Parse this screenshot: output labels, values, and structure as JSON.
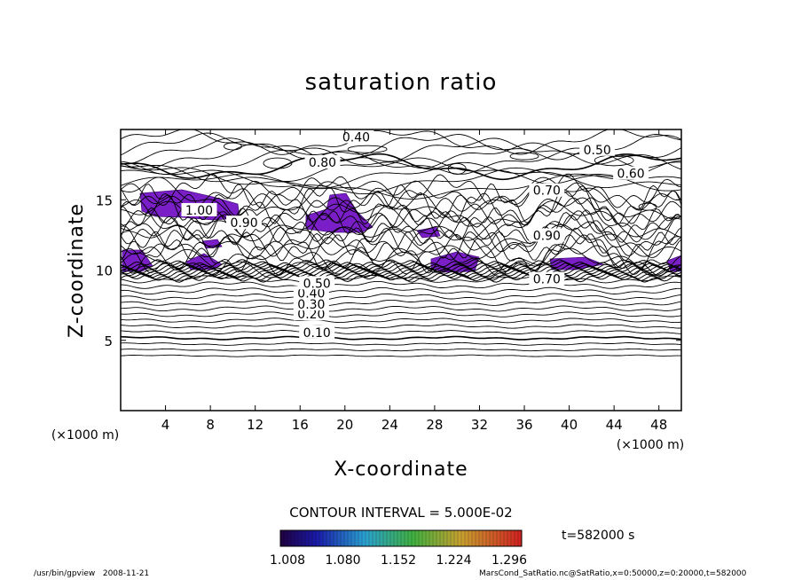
{
  "chart_data": {
    "type": "contour",
    "title": "saturation ratio",
    "xlabel": "X-coordinate",
    "ylabel": "Z-coordinate",
    "x_unit": "(×1000 m)",
    "y_unit": "(×1000 m)",
    "xlim": [
      0,
      50
    ],
    "ylim": [
      0,
      20
    ],
    "x_ticks": [
      4,
      8,
      12,
      16,
      20,
      24,
      28,
      32,
      36,
      40,
      44,
      48
    ],
    "y_ticks": [
      5,
      10,
      15
    ],
    "contour_interval_text": "CONTOUR INTERVAL = 5.000E-02",
    "time_text": "t=582000 s",
    "colorbar_ticks": [
      "1.008",
      "1.080",
      "1.152",
      "1.224",
      "1.296"
    ],
    "contour_labels": [
      {
        "text": "0.10",
        "x": 17.5,
        "z": 5.5
      },
      {
        "text": "0.20",
        "x": 17.0,
        "z": 6.8
      },
      {
        "text": "0.30",
        "x": 17.0,
        "z": 7.5
      },
      {
        "text": "0.40",
        "x": 17.0,
        "z": 8.3
      },
      {
        "text": "0.50",
        "x": 17.5,
        "z": 9.0
      },
      {
        "text": "0.70",
        "x": 38.0,
        "z": 9.3
      },
      {
        "text": "0.40",
        "x": 21.0,
        "z": 19.4
      },
      {
        "text": "0.50",
        "x": 42.5,
        "z": 18.5
      },
      {
        "text": "0.60",
        "x": 45.5,
        "z": 16.8
      },
      {
        "text": "0.70",
        "x": 38.0,
        "z": 15.6
      },
      {
        "text": "0.80",
        "x": 18.0,
        "z": 17.6
      },
      {
        "text": "0.90",
        "x": 11.0,
        "z": 13.3
      },
      {
        "text": "1.00",
        "x": 7.0,
        "z": 14.2
      },
      {
        "text": "0.90",
        "x": 38.0,
        "z": 12.4
      }
    ],
    "supersaturated_regions_z_range": [
      9.5,
      15.5
    ],
    "footer_left": "/usr/bin/gpview   2008-11-21",
    "footer_right": "MarsCond_SatRatio.nc@SatRatio,x=0:50000,z=0:20000,t=582000"
  }
}
